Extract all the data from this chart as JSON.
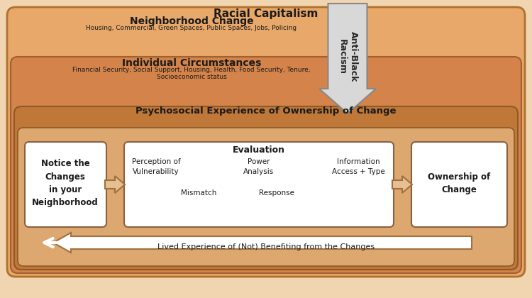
{
  "title": "Racial Capitalism",
  "title_fontsize": 11,
  "bg_outer": "#f5e6d0",
  "bg_nc": "#e8a96a",
  "bg_ic": "#d4945a",
  "bg_psycho": "#c8804a",
  "bg_inner_box": "#e8c8a0",
  "bg_white": "#ffffff",
  "border_color": "#8B6040",
  "text_dark": "#2a2a2a",
  "nc_title": "Neighborhood Change",
  "nc_sub": "Housing, Commercial, Green Spaces, Public Spaces, Jobs, Policing",
  "ic_title": "Individual Circumstances",
  "ic_sub": "Financial Security, Social Support, Housing, Health, Food Security, Tenure,\nSocioeconomic status",
  "psycho_title": "Psychosocial Experience of Ownership of Change",
  "box1_text": "Notice the\nChanges\nin your\nNeighborhood",
  "eval_title": "Evaluation",
  "eval_items_row1": [
    "Perception of\nVulnerability",
    "Power\nAnalysis",
    "Information\nAccess + Type"
  ],
  "eval_items_row2": [
    "Mismatch",
    "Response"
  ],
  "box3_text": "Ownership of\nChange",
  "feedback_text": "Lived Experience of (Not) Benefiting from the Changes",
  "arrow_label": "Anti-Black\nRacism",
  "outer_bg": "#f0d5b0",
  "nc_bg": "#e8a96a",
  "ic_bg": "#d4894a",
  "psycho_bg": "#c87d40"
}
